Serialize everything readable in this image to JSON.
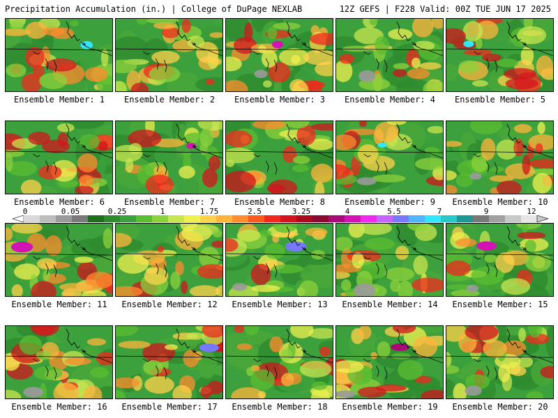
{
  "header": {
    "left": "Precipitation Accumulation (in.) | College of DuPage NEXLAB",
    "right": "12Z GEFS | F228 Valid: 00Z TUE JUN 17 2025"
  },
  "colorbar": {
    "ticks": [
      "0",
      "0.05",
      "0.25",
      "1",
      "1.75",
      "2.5",
      "3.25",
      "4",
      "5.5",
      "7",
      "9",
      "12"
    ],
    "colors": [
      "#d9d9d9",
      "#bdbdbd",
      "#9a9a9a",
      "#7a7a7a",
      "#1e6e1e",
      "#2e8b2e",
      "#3ca03c",
      "#5abe32",
      "#8cd23c",
      "#c8e650",
      "#f0f050",
      "#ffd24b",
      "#ffb43c",
      "#ff8c2d",
      "#ff5a1e",
      "#f0281e",
      "#d2141e",
      "#aa0a1e",
      "#8c0a32",
      "#aa0a78",
      "#d214b4",
      "#f028f0",
      "#c864ff",
      "#7878ff",
      "#50b4ff",
      "#32e6ff",
      "#28c8c8",
      "#1e9696",
      "#787878",
      "#a0a0a0",
      "#c8c8c8",
      "#e6e6e6"
    ]
  },
  "members": [
    {
      "label": "Ensemble Member: 1"
    },
    {
      "label": "Ensemble Member: 2"
    },
    {
      "label": "Ensemble Member: 3"
    },
    {
      "label": "Ensemble Member: 4"
    },
    {
      "label": "Ensemble Member: 5"
    },
    {
      "label": "Ensemble Member: 6"
    },
    {
      "label": "Ensemble Member: 7"
    },
    {
      "label": "Ensemble Member: 8"
    },
    {
      "label": "Ensemble Member: 9"
    },
    {
      "label": "Ensemble Member: 10"
    },
    {
      "label": "Ensemble Member: 11"
    },
    {
      "label": "Ensemble Member: 12"
    },
    {
      "label": "Ensemble Member: 13"
    },
    {
      "label": "Ensemble Member: 14"
    },
    {
      "label": "Ensemble Member: 15"
    },
    {
      "label": "Ensemble Member: 16"
    },
    {
      "label": "Ensemble Member: 17"
    },
    {
      "label": "Ensemble Member: 18"
    },
    {
      "label": "Ensemble Member: 19"
    },
    {
      "label": "Ensemble Member: 20"
    }
  ]
}
